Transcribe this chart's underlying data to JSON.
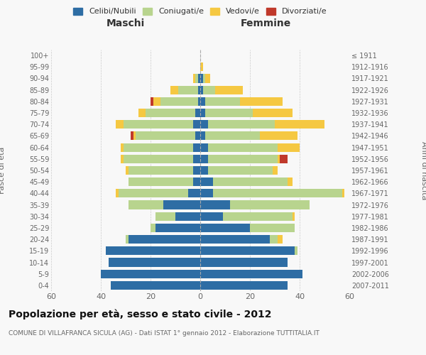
{
  "age_groups": [
    "0-4",
    "5-9",
    "10-14",
    "15-19",
    "20-24",
    "25-29",
    "30-34",
    "35-39",
    "40-44",
    "45-49",
    "50-54",
    "55-59",
    "60-64",
    "65-69",
    "70-74",
    "75-79",
    "80-84",
    "85-89",
    "90-94",
    "95-99",
    "100+"
  ],
  "birth_years": [
    "2007-2011",
    "2002-2006",
    "1997-2001",
    "1992-1996",
    "1987-1991",
    "1982-1986",
    "1977-1981",
    "1972-1976",
    "1967-1971",
    "1962-1966",
    "1957-1961",
    "1952-1956",
    "1947-1951",
    "1942-1946",
    "1937-1941",
    "1932-1936",
    "1927-1931",
    "1922-1926",
    "1917-1921",
    "1912-1916",
    "≤ 1911"
  ],
  "maschi": {
    "celibi": [
      36,
      40,
      37,
      38,
      29,
      18,
      10,
      15,
      5,
      3,
      3,
      3,
      3,
      2,
      3,
      2,
      1,
      1,
      1,
      0,
      0
    ],
    "coniugati": [
      0,
      0,
      0,
      0,
      1,
      2,
      8,
      14,
      28,
      26,
      26,
      28,
      28,
      24,
      28,
      20,
      15,
      8,
      1,
      0,
      0
    ],
    "vedovi": [
      0,
      0,
      0,
      0,
      0,
      0,
      0,
      0,
      1,
      0,
      1,
      1,
      1,
      1,
      3,
      3,
      3,
      3,
      1,
      0,
      0
    ],
    "divorziati": [
      0,
      0,
      0,
      0,
      0,
      0,
      0,
      0,
      0,
      0,
      0,
      0,
      0,
      1,
      0,
      0,
      1,
      0,
      0,
      0,
      0
    ]
  },
  "femmine": {
    "nubili": [
      35,
      41,
      35,
      38,
      28,
      20,
      9,
      12,
      5,
      5,
      3,
      3,
      3,
      2,
      3,
      2,
      2,
      1,
      1,
      0,
      0
    ],
    "coniugate": [
      0,
      0,
      0,
      1,
      3,
      18,
      28,
      32,
      52,
      30,
      26,
      28,
      28,
      22,
      27,
      19,
      14,
      5,
      1,
      0,
      0
    ],
    "vedove": [
      0,
      0,
      0,
      0,
      2,
      0,
      1,
      0,
      1,
      2,
      2,
      1,
      9,
      15,
      20,
      16,
      17,
      11,
      2,
      1,
      0
    ],
    "divorziate": [
      0,
      0,
      0,
      0,
      0,
      0,
      0,
      0,
      0,
      0,
      0,
      3,
      0,
      0,
      0,
      0,
      0,
      0,
      0,
      0,
      0
    ]
  },
  "colors": {
    "celibi": "#2e6da4",
    "coniugati": "#b8d48e",
    "vedovi": "#f5c842",
    "divorziati": "#c0392b"
  },
  "title": "Popolazione per età, sesso e stato civile - 2012",
  "subtitle": "COMUNE DI VILLAFRANCA SICULA (AG) - Dati ISTAT 1° gennaio 2012 - Elaborazione TUTTITALIA.IT",
  "label_maschi": "Maschi",
  "label_femmine": "Femmine",
  "ylabel_left": "Fasce di età",
  "ylabel_right": "Anni di nascita",
  "xlim": 60,
  "bg_color": "#f8f8f8",
  "grid_color": "#cccccc"
}
